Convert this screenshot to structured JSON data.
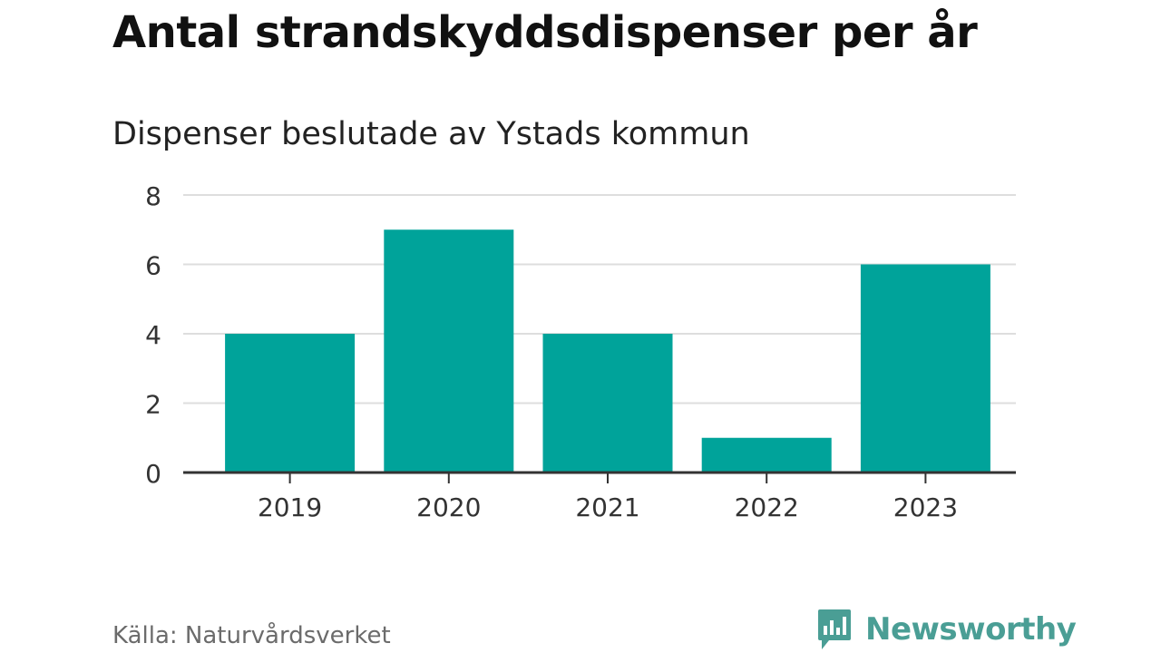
{
  "chart_data": {
    "type": "bar",
    "title": "Antal strandskyddsdispenser per år",
    "subtitle": "Dispenser beslutade av Ystads kommun",
    "categories": [
      "2019",
      "2020",
      "2021",
      "2022",
      "2023"
    ],
    "values": [
      4,
      7,
      4,
      1,
      6
    ],
    "ylim": [
      0,
      8
    ],
    "yticks": [
      0,
      2,
      4,
      6,
      8
    ],
    "ytick_labels": [
      "0",
      "2",
      "4",
      "6",
      "8"
    ],
    "grid": true,
    "legend": "none",
    "xlabel": "",
    "ylabel": ""
  },
  "footer": {
    "source": "Källa: Naturvårdsverket",
    "brand": "Newsworthy"
  },
  "colors": {
    "bar": "#00a39a",
    "grid": "#dedede",
    "axis": "#333333",
    "brand": "#4a9e95"
  },
  "icons": {
    "brand_logo": "bar-chart-speech-bubble-icon"
  }
}
